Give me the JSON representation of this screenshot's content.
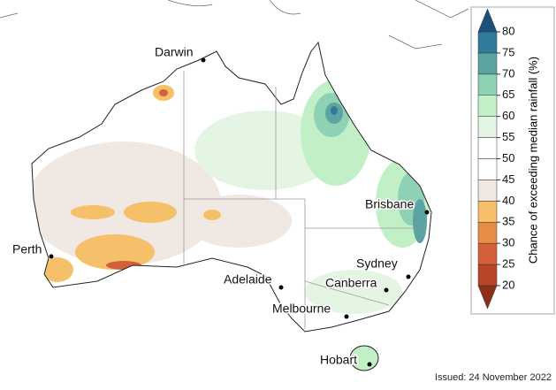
{
  "map": {
    "cities": [
      "Darwin",
      "Perth",
      "Adelaide",
      "Melbourne",
      "Canberra",
      "Sydney",
      "Brisbane",
      "Hobart"
    ],
    "colorbar": {
      "title": "Chance of exceeding median rainfall (%)",
      "ticks": [
        20,
        25,
        30,
        35,
        40,
        45,
        50,
        55,
        60,
        65,
        70,
        75,
        80
      ],
      "colors": [
        "#b8442a",
        "#d4603a",
        "#e58d45",
        "#f6c06a",
        "#f0e8e3",
        "#ffffff",
        "#ffffff",
        "#e5f5e4",
        "#c2f0c6",
        "#8fd1b4",
        "#5ba4a2",
        "#307b99"
      ],
      "under_color": "#8c2f18",
      "over_color": "#1d4f7b"
    },
    "issued": "Issued: 24 November 2022"
  }
}
